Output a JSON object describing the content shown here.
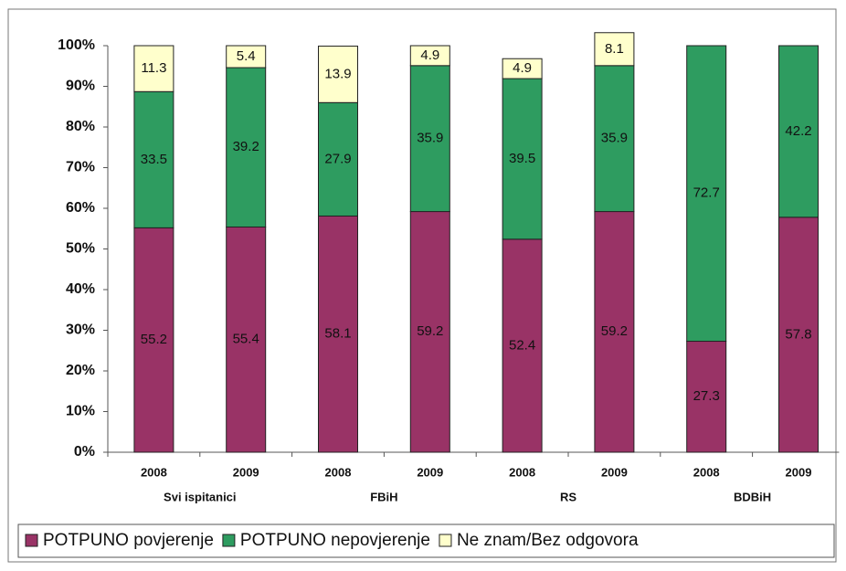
{
  "chart_data": {
    "type": "stacked_bar",
    "categories": [
      "2008",
      "2009",
      "2008",
      "2009",
      "2008",
      "2009",
      "2008",
      "2009"
    ],
    "groups": [
      "Svi ispitanici",
      "FBiH",
      "RS",
      "BDBiH"
    ],
    "series": [
      {
        "name": "POTPUNO povjerenje",
        "color": "#993366",
        "values": [
          55.2,
          55.4,
          58.1,
          59.2,
          52.4,
          59.2,
          27.3,
          57.8
        ]
      },
      {
        "name": "POTPUNO nepovjerenje",
        "color": "#2e9c60",
        "values": [
          33.5,
          39.2,
          27.9,
          35.9,
          39.5,
          35.9,
          72.7,
          42.2
        ]
      },
      {
        "name": "Ne znam/Bez odgovora",
        "color": "#ffffcc",
        "values": [
          11.3,
          5.4,
          13.9,
          4.9,
          4.9,
          8.1,
          null,
          null
        ]
      }
    ],
    "ylim": [
      0,
      100
    ],
    "yticks": [
      {
        "value": 0,
        "label": "0%"
      },
      {
        "value": 10,
        "label": "10%"
      },
      {
        "value": 20,
        "label": "20%"
      },
      {
        "value": 30,
        "label": "30%"
      },
      {
        "value": 40,
        "label": "40%"
      },
      {
        "value": 50,
        "label": "50%"
      },
      {
        "value": 60,
        "label": "60%"
      },
      {
        "value": 70,
        "label": "70%"
      },
      {
        "value": 80,
        "label": "80%"
      },
      {
        "value": 90,
        "label": "90%"
      },
      {
        "value": 100,
        "label": "100%"
      }
    ],
    "legend": "bottom"
  }
}
